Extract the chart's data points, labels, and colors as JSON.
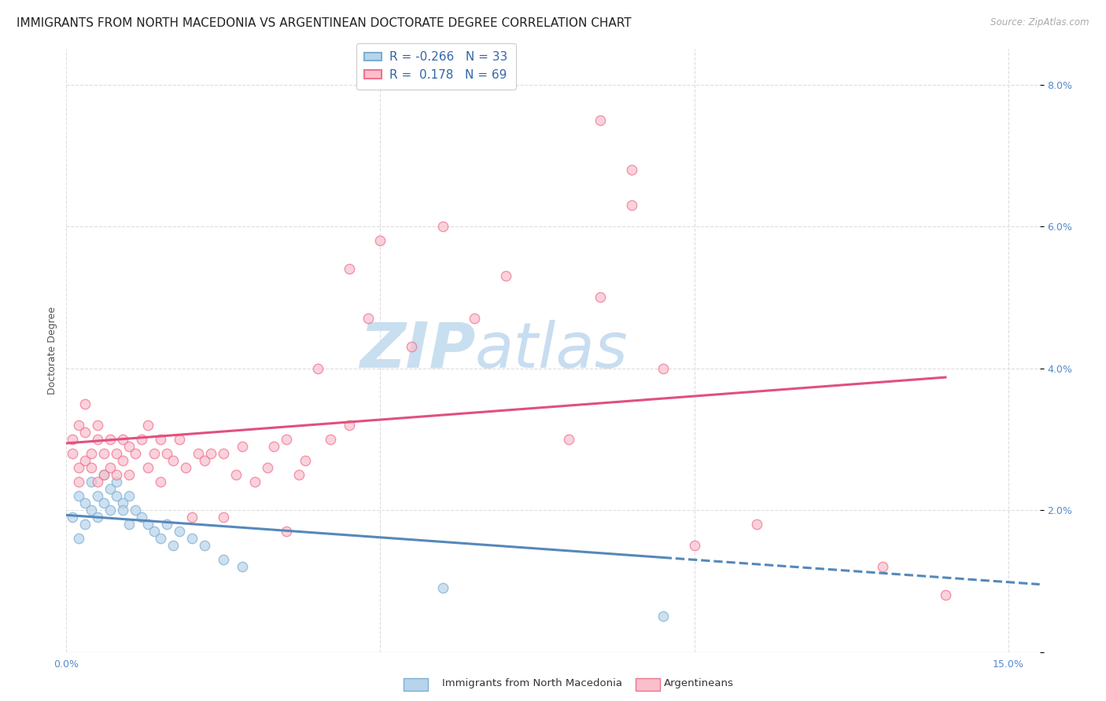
{
  "title": "IMMIGRANTS FROM NORTH MACEDONIA VS ARGENTINEAN DOCTORATE DEGREE CORRELATION CHART",
  "source": "Source: ZipAtlas.com",
  "ylabel": "Doctorate Degree",
  "xlim": [
    0.0,
    0.155
  ],
  "ylim": [
    0.0,
    0.085
  ],
  "blue_fill": "#b8d4ea",
  "blue_edge": "#7bafd4",
  "pink_fill": "#f9c0cc",
  "pink_edge": "#f07090",
  "blue_line_color": "#5588bb",
  "pink_line_color": "#e05080",
  "legend_label_blue": "Immigrants from North Macedonia",
  "legend_label_pink": "Argentineans",
  "R_blue": -0.266,
  "N_blue": 33,
  "R_pink": 0.178,
  "N_pink": 69,
  "blue_scatter_x": [
    0.001,
    0.002,
    0.002,
    0.003,
    0.003,
    0.004,
    0.004,
    0.005,
    0.005,
    0.006,
    0.006,
    0.007,
    0.007,
    0.008,
    0.008,
    0.009,
    0.009,
    0.01,
    0.01,
    0.011,
    0.012,
    0.013,
    0.014,
    0.015,
    0.016,
    0.017,
    0.018,
    0.02,
    0.022,
    0.025,
    0.028,
    0.06,
    0.095
  ],
  "blue_scatter_y": [
    0.019,
    0.022,
    0.016,
    0.021,
    0.018,
    0.02,
    0.024,
    0.022,
    0.019,
    0.025,
    0.021,
    0.023,
    0.02,
    0.024,
    0.022,
    0.021,
    0.02,
    0.022,
    0.018,
    0.02,
    0.019,
    0.018,
    0.017,
    0.016,
    0.018,
    0.015,
    0.017,
    0.016,
    0.015,
    0.013,
    0.012,
    0.009,
    0.005
  ],
  "pink_scatter_x": [
    0.001,
    0.001,
    0.002,
    0.002,
    0.002,
    0.003,
    0.003,
    0.003,
    0.004,
    0.004,
    0.005,
    0.005,
    0.005,
    0.006,
    0.006,
    0.007,
    0.007,
    0.008,
    0.008,
    0.009,
    0.009,
    0.01,
    0.01,
    0.011,
    0.012,
    0.013,
    0.013,
    0.014,
    0.015,
    0.015,
    0.016,
    0.017,
    0.018,
    0.019,
    0.02,
    0.021,
    0.022,
    0.023,
    0.025,
    0.025,
    0.027,
    0.028,
    0.03,
    0.032,
    0.033,
    0.035,
    0.035,
    0.037,
    0.038,
    0.04,
    0.042,
    0.045,
    0.045,
    0.048,
    0.05,
    0.055,
    0.06,
    0.065,
    0.07,
    0.08,
    0.085,
    0.09,
    0.095,
    0.1,
    0.11,
    0.13,
    0.14,
    0.085,
    0.09
  ],
  "pink_scatter_y": [
    0.03,
    0.028,
    0.026,
    0.032,
    0.024,
    0.027,
    0.031,
    0.035,
    0.028,
    0.026,
    0.03,
    0.024,
    0.032,
    0.028,
    0.025,
    0.03,
    0.026,
    0.025,
    0.028,
    0.027,
    0.03,
    0.025,
    0.029,
    0.028,
    0.03,
    0.032,
    0.026,
    0.028,
    0.024,
    0.03,
    0.028,
    0.027,
    0.03,
    0.026,
    0.019,
    0.028,
    0.027,
    0.028,
    0.019,
    0.028,
    0.025,
    0.029,
    0.024,
    0.026,
    0.029,
    0.017,
    0.03,
    0.025,
    0.027,
    0.04,
    0.03,
    0.032,
    0.054,
    0.047,
    0.058,
    0.043,
    0.06,
    0.047,
    0.053,
    0.03,
    0.05,
    0.063,
    0.04,
    0.015,
    0.018,
    0.012,
    0.008,
    0.075,
    0.068
  ],
  "background_color": "#ffffff",
  "grid_color": "#dddddd",
  "watermark_zip": "ZIP",
  "watermark_atlas": "atlas",
  "watermark_color_zip": "#c8dff0",
  "watermark_color_atlas": "#c8ddf0",
  "title_fontsize": 11,
  "axis_label_fontsize": 9,
  "tick_fontsize": 9,
  "marker_size": 80,
  "marker_alpha": 0.7
}
